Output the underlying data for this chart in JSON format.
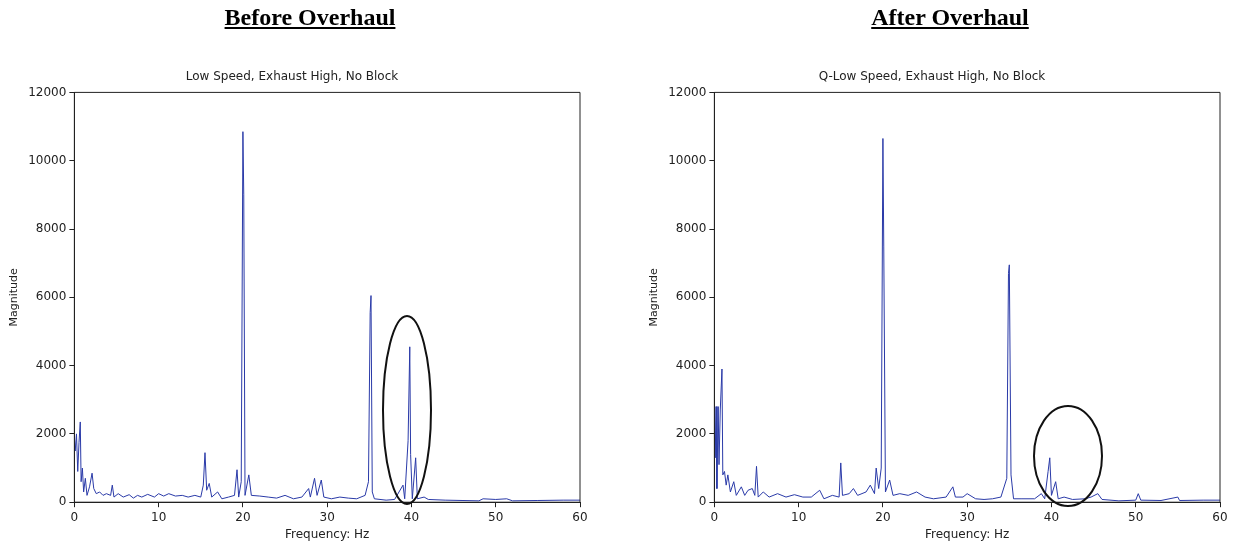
{
  "chart_data": [
    {
      "type": "line",
      "title": "Before Overhaul",
      "subtitle": "Low Speed, Exhaust High, No Block",
      "xlabel": "Frequency: Hz",
      "ylabel": "Magnitude",
      "xlim": [
        0,
        60
      ],
      "xticks": [
        0,
        10,
        20,
        30,
        40,
        50,
        60
      ],
      "ylim": [
        0,
        12000
      ],
      "yticks": [
        0,
        2000,
        4000,
        6000,
        8000,
        10000,
        12000
      ],
      "grid": false,
      "legend": false,
      "marker": "none",
      "x": [
        0,
        0.1,
        0.25,
        0.4,
        0.55,
        0.7,
        0.8,
        0.95,
        1.1,
        1.3,
        1.5,
        1.8,
        2.1,
        2.3,
        2.6,
        3,
        3.4,
        3.8,
        4.3,
        4.5,
        4.7,
        5.2,
        5.8,
        6.5,
        7,
        7.5,
        8,
        8.7,
        9.5,
        10,
        10.6,
        11.2,
        12,
        12.8,
        13.5,
        14.3,
        15,
        15.3,
        15.5,
        15.7,
        16,
        16.3,
        17,
        17.5,
        18.3,
        19,
        19.3,
        19.5,
        19.8,
        20,
        20.1,
        20.25,
        20.7,
        21,
        22,
        23,
        24,
        25,
        26,
        27,
        27.8,
        28,
        28.5,
        28.8,
        29.3,
        29.6,
        30.5,
        31.5,
        32.5,
        33.5,
        34.5,
        34.9,
        35.1,
        35.2,
        35.35,
        35.6,
        37,
        38,
        39,
        39.2,
        39.6,
        39.8,
        39.9,
        40.1,
        40.5,
        40.7,
        41.5,
        42,
        44,
        46,
        48,
        48.5,
        50,
        51.3,
        52,
        55,
        58,
        60
      ],
      "series": [
        {
          "color": "#2a3aa8",
          "values": [
            1900,
            1500,
            2000,
            900,
            1750,
            2350,
            600,
            1000,
            300,
            700,
            200,
            450,
            850,
            400,
            250,
            300,
            200,
            250,
            200,
            500,
            150,
            250,
            150,
            220,
            120,
            200,
            150,
            230,
            150,
            250,
            180,
            250,
            180,
            200,
            150,
            200,
            150,
            500,
            1450,
            350,
            550,
            150,
            300,
            100,
            150,
            200,
            950,
            150,
            600,
            10850,
            9000,
            200,
            800,
            200,
            180,
            150,
            120,
            200,
            100,
            150,
            400,
            150,
            700,
            200,
            650,
            150,
            100,
            150,
            120,
            100,
            200,
            600,
            5550,
            6050,
            300,
            100,
            60,
            80,
            500,
            100,
            1800,
            4550,
            1400,
            100,
            1300,
            100,
            150,
            80,
            60,
            50,
            40,
            100,
            80,
            100,
            40,
            50,
            60,
            60
          ]
        }
      ]
    },
    {
      "type": "line",
      "title": "After Overhaul",
      "subtitle": "Q-Low Speed, Exhaust High, No Block",
      "xlabel": "Frequency: Hz",
      "ylabel": "Magnitude",
      "xlim": [
        0,
        60
      ],
      "xticks": [
        0,
        10,
        20,
        30,
        40,
        50,
        60
      ],
      "ylim": [
        0,
        12000
      ],
      "yticks": [
        0,
        2000,
        4000,
        6000,
        8000,
        10000,
        12000
      ],
      "grid": false,
      "legend": false,
      "marker": "none",
      "x": [
        0,
        0.1,
        0.2,
        0.3,
        0.45,
        0.55,
        0.7,
        0.9,
        1.0,
        1.2,
        1.4,
        1.6,
        1.9,
        2.3,
        2.6,
        3.2,
        3.6,
        4,
        4.5,
        4.8,
        5,
        5.2,
        5.8,
        6.5,
        7.5,
        8.5,
        9.5,
        10.5,
        11.5,
        12.5,
        13,
        14,
        14.8,
        15,
        15.2,
        16,
        16.5,
        17,
        18,
        18.5,
        19,
        19.2,
        19.5,
        19.8,
        20,
        20.1,
        20.3,
        20.8,
        21.2,
        22,
        23,
        24,
        25,
        26,
        27.5,
        28.3,
        28.6,
        29.5,
        30,
        31,
        32,
        33,
        34,
        34.7,
        34.9,
        35,
        35.2,
        35.5,
        36.5,
        38,
        38.8,
        39.2,
        39.6,
        39.8,
        40,
        40.5,
        40.8,
        41.5,
        42.5,
        44,
        44.7,
        45.5,
        46,
        48,
        50,
        50.3,
        50.6,
        53,
        55,
        55.2,
        58,
        60
      ],
      "series": [
        {
          "color": "#2a3aa8",
          "values": [
            2800,
            1300,
            2800,
            400,
            2800,
            1100,
            2700,
            3900,
            800,
            900,
            500,
            800,
            300,
            600,
            200,
            450,
            200,
            350,
            400,
            200,
            1050,
            150,
            300,
            150,
            250,
            150,
            220,
            150,
            150,
            350,
            100,
            200,
            150,
            1150,
            200,
            250,
            400,
            200,
            300,
            500,
            250,
            1000,
            400,
            1000,
            10650,
            7500,
            300,
            650,
            200,
            250,
            200,
            300,
            150,
            100,
            150,
            450,
            150,
            150,
            250,
            100,
            80,
            100,
            150,
            700,
            6700,
            6950,
            800,
            100,
            100,
            100,
            250,
            100,
            900,
            1300,
            200,
            600,
            100,
            150,
            80,
            100,
            150,
            250,
            80,
            40,
            60,
            250,
            60,
            50,
            150,
            50,
            60,
            60
          ]
        }
      ]
    }
  ]
}
